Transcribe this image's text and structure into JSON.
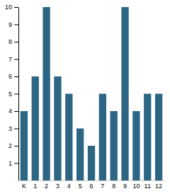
{
  "chart_data": {
    "type": "bar",
    "categories": [
      "K",
      "1",
      "2",
      "3",
      "4",
      "5",
      "6",
      "7",
      "8",
      "9",
      "10",
      "11",
      "12"
    ],
    "values": [
      4,
      6,
      10,
      6,
      5,
      3,
      2,
      5,
      4,
      10,
      4,
      5,
      5
    ],
    "color": "#2d6585",
    "ylim": [
      0,
      10
    ],
    "yticks": [
      1,
      2,
      3,
      4,
      5,
      6,
      7,
      8,
      9,
      10
    ],
    "grid": false
  }
}
